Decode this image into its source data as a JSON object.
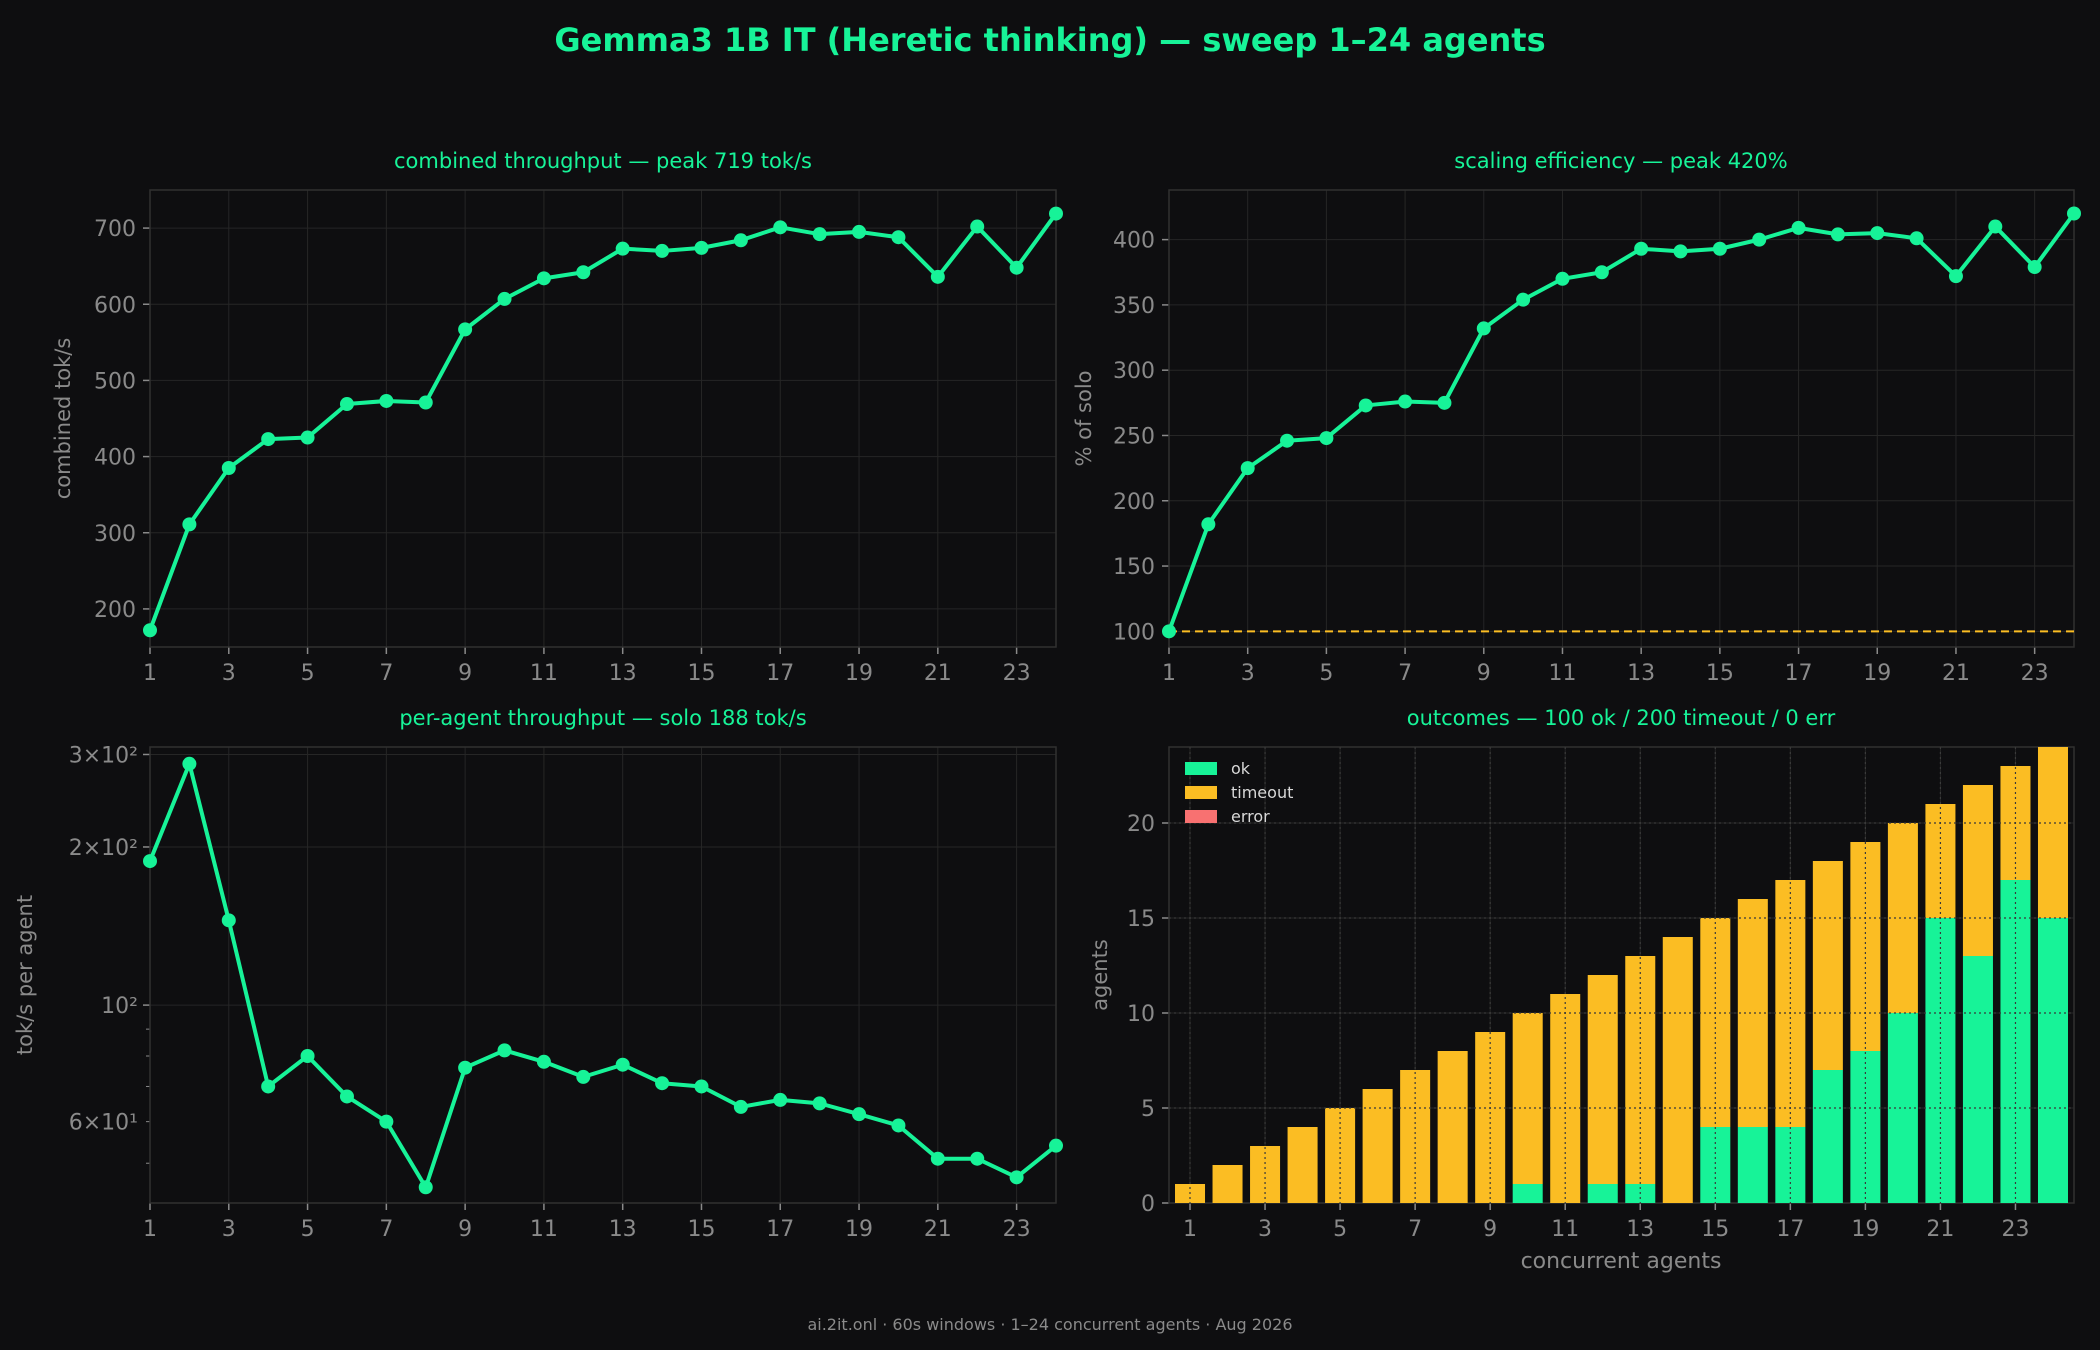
{
  "page": {
    "title": "Gemma3 1B IT (Heretic thinking) — sweep 1–24 agents",
    "footer": "ai.2it.onl · 60s windows · 1–24 concurrent agents · Aug 2026"
  },
  "colors": {
    "background": "#0e0e10",
    "accent": "#17f398",
    "timeout": "#fbbd23",
    "error": "#f87171",
    "reference_line": "#fbbd23",
    "axis_text": "#8a8a8a",
    "frame": "#303030",
    "grid": "#262626"
  },
  "chart_data": [
    {
      "type": "line",
      "title": "combined throughput — peak 719 tok/s",
      "xlabel": "",
      "ylabel": "combined tok/s",
      "x": [
        1,
        2,
        3,
        4,
        5,
        6,
        7,
        8,
        9,
        10,
        11,
        12,
        13,
        14,
        15,
        16,
        17,
        18,
        19,
        20,
        21,
        22,
        23,
        24
      ],
      "xticks": [
        "1",
        "3",
        "5",
        "7",
        "9",
        "11",
        "13",
        "15",
        "17",
        "19",
        "21",
        "23"
      ],
      "yticks": [
        "200",
        "300",
        "400",
        "500",
        "600",
        "700"
      ],
      "xlim": [
        1,
        24
      ],
      "ylim": [
        150,
        750
      ],
      "grid": true,
      "series": [
        {
          "values": [
            172,
            311,
            385,
            423,
            425,
            469,
            473,
            471,
            567,
            607,
            634,
            642,
            673,
            670,
            674,
            684,
            701,
            692,
            695,
            688,
            636,
            702,
            648,
            719
          ]
        }
      ]
    },
    {
      "type": "line",
      "title": "scaling efficiency — peak 420%",
      "xlabel": "",
      "ylabel": "% of solo",
      "x": [
        1,
        2,
        3,
        4,
        5,
        6,
        7,
        8,
        9,
        10,
        11,
        12,
        13,
        14,
        15,
        16,
        17,
        18,
        19,
        20,
        21,
        22,
        23,
        24
      ],
      "xticks": [
        "1",
        "3",
        "5",
        "7",
        "9",
        "11",
        "13",
        "15",
        "17",
        "19",
        "21",
        "23"
      ],
      "yticks": [
        "100",
        "150",
        "200",
        "250",
        "300",
        "350",
        "400"
      ],
      "xlim": [
        1,
        24
      ],
      "ylim": [
        88,
        438
      ],
      "grid": true,
      "reference_line": 100,
      "series": [
        {
          "values": [
            100,
            182,
            225,
            246,
            248,
            273,
            276,
            275,
            332,
            354,
            370,
            375,
            393,
            391,
            393,
            400,
            409,
            404,
            405,
            401,
            372,
            410,
            379,
            420
          ]
        }
      ]
    },
    {
      "type": "line",
      "title": "per-agent throughput — solo 188 tok/s",
      "xlabel": "",
      "ylabel": "tok/s per agent",
      "scale": "log",
      "x": [
        1,
        2,
        3,
        4,
        5,
        6,
        7,
        8,
        9,
        10,
        11,
        12,
        13,
        14,
        15,
        16,
        17,
        18,
        19,
        20,
        21,
        22,
        23,
        24
      ],
      "xticks": [
        "1",
        "3",
        "5",
        "7",
        "9",
        "11",
        "13",
        "15",
        "17",
        "19",
        "21",
        "23"
      ],
      "yticks_major": [
        "10²",
        "2×10²",
        "3×10²"
      ],
      "ylim": [
        42,
        310
      ],
      "grid": true,
      "series": [
        {
          "values": [
            188,
            288,
            145,
            70,
            80,
            67,
            60,
            45,
            76,
            82,
            78,
            73,
            77,
            71,
            70,
            64,
            66,
            65,
            62,
            59,
            51,
            51,
            47,
            54
          ]
        }
      ]
    },
    {
      "type": "bar",
      "stacked": true,
      "title": "outcomes — 100 ok / 200 timeout / 0 err",
      "xlabel": "concurrent agents",
      "ylabel": "agents",
      "categories": [
        1,
        2,
        3,
        4,
        5,
        6,
        7,
        8,
        9,
        10,
        11,
        12,
        13,
        14,
        15,
        16,
        17,
        18,
        19,
        20,
        21,
        22,
        23,
        24
      ],
      "xticks": [
        "1",
        "3",
        "5",
        "7",
        "9",
        "11",
        "13",
        "15",
        "17",
        "19",
        "21",
        "23"
      ],
      "yticks": [
        "0",
        "5",
        "10",
        "15",
        "20"
      ],
      "ylim": [
        0,
        24
      ],
      "legend": "top-left",
      "series": [
        {
          "name": "ok",
          "values": [
            0,
            0,
            0,
            0,
            0,
            0,
            0,
            0,
            0,
            1,
            0,
            1,
            1,
            0,
            4,
            4,
            4,
            7,
            8,
            10,
            15,
            13,
            17,
            15
          ]
        },
        {
          "name": "timeout",
          "values": [
            1,
            2,
            3,
            4,
            5,
            6,
            7,
            8,
            9,
            9,
            11,
            11,
            12,
            14,
            11,
            12,
            13,
            11,
            11,
            10,
            6,
            9,
            6,
            9
          ]
        },
        {
          "name": "error",
          "values": [
            0,
            0,
            0,
            0,
            0,
            0,
            0,
            0,
            0,
            0,
            0,
            0,
            0,
            0,
            0,
            0,
            0,
            0,
            0,
            0,
            0,
            0,
            0,
            0
          ]
        }
      ]
    }
  ]
}
